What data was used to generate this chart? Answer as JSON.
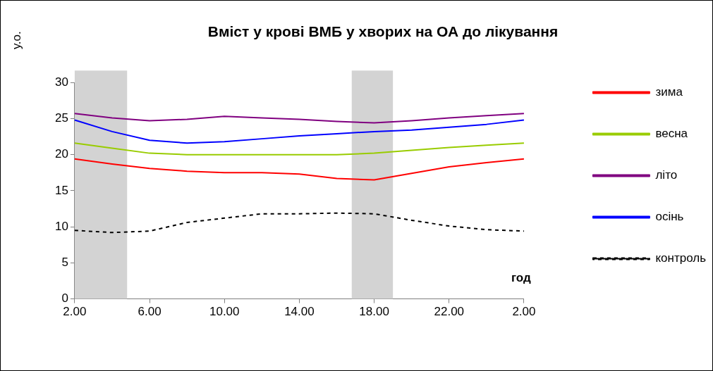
{
  "chart_data": {
    "type": "line",
    "title": "Вміст у крові ВМБ у хворих на ОА до лікування",
    "xlabel": "год",
    "ylabel": "у.о.",
    "x": [
      "2000-01-01T02:00",
      "2000-01-01T04:00",
      "2000-01-01T06:00",
      "2000-01-01T08:00",
      "2000-01-01T10:00",
      "2000-01-01T12:00",
      "2000-01-01T14:00",
      "2000-01-01T16:00",
      "2000-01-01T18:00",
      "2000-01-01T20:00",
      "2000-01-01T22:00",
      "2000-01-02T00:00",
      "2000-01-02T02:00"
    ],
    "series": [
      {
        "name": "зима",
        "color": "#ff0000",
        "values": [
          19.4,
          18.7,
          18.1,
          17.7,
          17.5,
          17.5,
          17.3,
          16.7,
          16.5,
          17.4,
          18.3,
          18.9,
          19.4
        ]
      },
      {
        "name": "весна",
        "color": "#99cc00",
        "values": [
          21.6,
          20.9,
          20.2,
          20.0,
          20.0,
          20.0,
          20.0,
          20.0,
          20.2,
          20.6,
          21.0,
          21.3,
          21.6
        ]
      },
      {
        "name": "літо",
        "color": "#800080",
        "values": [
          25.7,
          25.1,
          24.7,
          24.9,
          25.3,
          25.1,
          24.9,
          24.6,
          24.4,
          24.7,
          25.1,
          25.4,
          25.7
        ]
      },
      {
        "name": "осінь",
        "color": "#0000ff",
        "values": [
          24.8,
          23.2,
          22.0,
          21.6,
          21.8,
          22.2,
          22.6,
          22.9,
          23.2,
          23.4,
          23.8,
          24.2,
          24.8
        ]
      },
      {
        "name": "контроль",
        "color": "#000000",
        "line_style": "dashed",
        "values": [
          9.5,
          9.2,
          9.4,
          10.6,
          11.2,
          11.8,
          11.8,
          11.9,
          11.8,
          10.9,
          10.1,
          9.6,
          9.4
        ]
      }
    ],
    "xlim": [
      "2000-01-01T02:00",
      "2000-01-02T02:00"
    ],
    "xticks": [
      {
        "value": "2000-01-01T02:00",
        "label": "2.00"
      },
      {
        "value": "2000-01-01T06:00",
        "label": "6.00"
      },
      {
        "value": "2000-01-01T10:00",
        "label": "10.00"
      },
      {
        "value": "2000-01-01T14:00",
        "label": "14.00"
      },
      {
        "value": "2000-01-01T18:00",
        "label": "18.00"
      },
      {
        "value": "2000-01-01T22:00",
        "label": "22.00"
      },
      {
        "value": "2000-01-02T02:00",
        "label": "2.00"
      }
    ],
    "ylim": [
      0,
      30
    ],
    "yticks": [
      0,
      5,
      10,
      15,
      20,
      25,
      30
    ],
    "bands": [
      {
        "axis": "x",
        "from": "2000-01-01T02:00",
        "to": "2000-01-01T04:48",
        "color": "#d3d3d3"
      },
      {
        "axis": "x",
        "from": "2000-01-01T16:48",
        "to": "2000-01-01T19:00",
        "color": "#d3d3d3"
      }
    ],
    "legend": "right",
    "grid": false,
    "marker": "none",
    "line_style": "solid"
  }
}
